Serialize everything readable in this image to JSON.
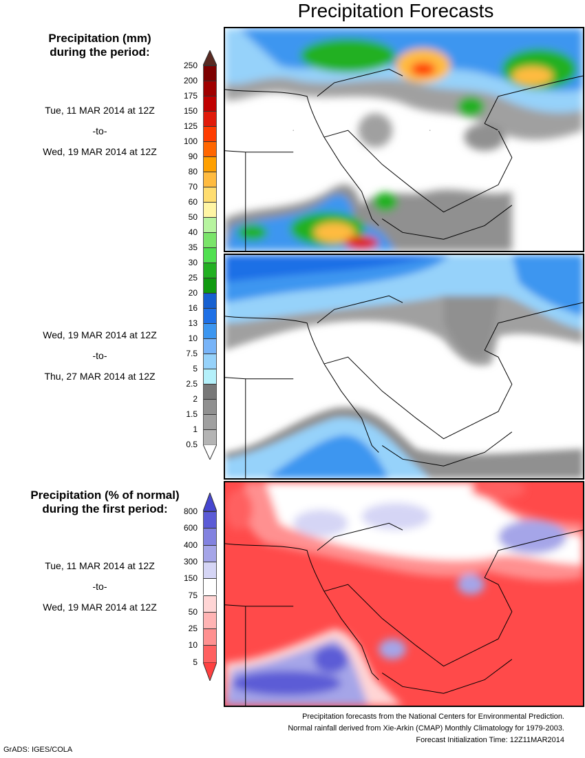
{
  "title": "Precipitation Forecasts",
  "left_panel": {
    "heading_mm": [
      "Precipitation (mm)",
      "during the period:"
    ],
    "period1": [
      "Tue, 11 MAR 2014 at 12Z",
      "-to-",
      "Wed, 19 MAR 2014 at 12Z"
    ],
    "period2": [
      "Wed, 19 MAR 2014 at 12Z",
      "-to-",
      "Thu, 27 MAR 2014 at 12Z"
    ],
    "heading_pct": [
      "Precipitation (% of normal)",
      "during the first period:"
    ],
    "period3": [
      "Tue, 11 MAR 2014 at 12Z",
      "-to-",
      "Wed, 19 MAR 2014 at 12Z"
    ]
  },
  "colorbar_mm": {
    "labels": [
      "250",
      "200",
      "175",
      "150",
      "125",
      "100",
      "90",
      "80",
      "70",
      "60",
      "50",
      "40",
      "35",
      "30",
      "25",
      "20",
      "16",
      "13",
      "10",
      "7.5",
      "5",
      "2.5",
      "2",
      "1.5",
      "1",
      "0.5"
    ],
    "top_color": "#5a2a22",
    "colors": [
      "#7d0000",
      "#a00000",
      "#c00000",
      "#e01a0a",
      "#ff3c00",
      "#ff6600",
      "#ffa000",
      "#ffbb40",
      "#ffdd70",
      "#fff5a5",
      "#b7f4a0",
      "#7ae46a",
      "#50e050",
      "#22b022",
      "#109a10",
      "#1660d0",
      "#1e70e6",
      "#3c96f0",
      "#78b4f8",
      "#96d2fa",
      "#b4f0fa",
      "#787878",
      "#909090",
      "#a0a0a0",
      "#b4b4b4"
    ],
    "bottom_color": "#ffffff"
  },
  "colorbar_pct": {
    "labels": [
      "800",
      "600",
      "400",
      "300",
      "150",
      "75",
      "50",
      "25",
      "10",
      "5"
    ],
    "top_color": "#4646d0",
    "colors": [
      "#5b5bd6",
      "#8282e0",
      "#a5a5e8",
      "#d5d5f5",
      "#ffffff",
      "#ffd5d5",
      "#ffb4b4",
      "#ff9090",
      "#ff6060"
    ],
    "bottom_color": "#ff4040"
  },
  "footer": [
    "Precipitation forecasts from the National Centers for Environmental Prediction.",
    "Normal rainfall derived from Xie-Arkin (CMAP) Monthly Climatology for 1979-2003.",
    "Forecast Initialization Time: 12Z11MAR2014"
  ],
  "credit": "GrADS: IGES/COLA"
}
